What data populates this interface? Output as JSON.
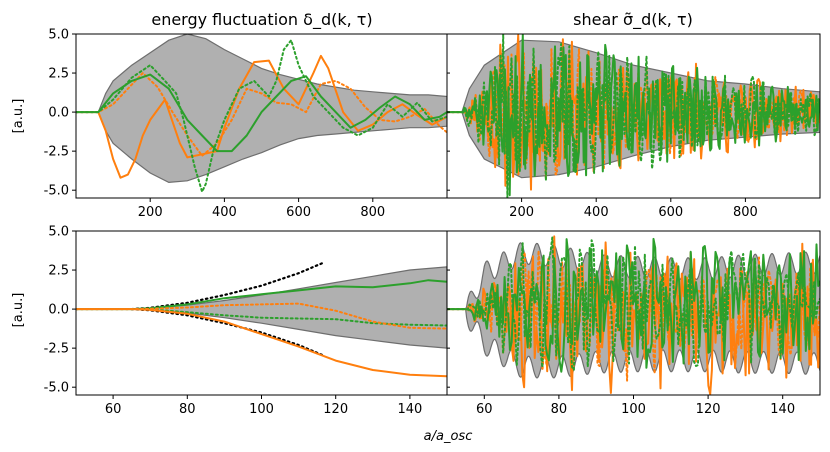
{
  "figure": {
    "xlabel": "a/a_osc",
    "colors": {
      "orange": "#ff7f0e",
      "green": "#2ca02c",
      "band_fill": "#b0b0b0",
      "band_edge": "#6e6e6e",
      "dotted_black": "#000000"
    }
  },
  "chart_data": [
    {
      "type": "line",
      "panel": "top-left",
      "title": "energy fluctuation δ_d(k, τ)",
      "xlabel": "",
      "ylabel": "[a.u.]",
      "xlim": [
        0,
        1000
      ],
      "ylim": [
        -5.5,
        5.0
      ],
      "xticks": [
        200,
        400,
        600,
        800
      ],
      "yticks": [
        -5.0,
        -2.5,
        0.0,
        2.5,
        5.0
      ],
      "band": {
        "x": [
          0,
          60,
          70,
          80,
          100,
          150,
          200,
          250,
          300,
          350,
          400,
          450,
          500,
          550,
          600,
          650,
          700,
          750,
          800,
          850,
          900,
          950,
          1000
        ],
        "upper": [
          0,
          0,
          0.6,
          1.2,
          2.0,
          3.0,
          3.8,
          4.6,
          5.0,
          4.7,
          4.0,
          3.4,
          2.8,
          2.4,
          2.1,
          1.8,
          1.6,
          1.4,
          1.3,
          1.2,
          1.1,
          1.1,
          1.0
        ],
        "lower": [
          0,
          0,
          -0.6,
          -1.2,
          -2.0,
          -3.0,
          -3.9,
          -4.5,
          -4.4,
          -4.0,
          -3.5,
          -3.0,
          -2.6,
          -2.1,
          -1.7,
          -1.5,
          -1.4,
          -1.3,
          -1.2,
          -1.1,
          -1.0,
          -1.0,
          -0.9
        ]
      },
      "series": [
        {
          "color": "orange",
          "style": "solid",
          "x": [
            0,
            60,
            80,
            100,
            120,
            140,
            160,
            180,
            200,
            240,
            280,
            300,
            340,
            380,
            400,
            440,
            480,
            520,
            560,
            600,
            640,
            660,
            680,
            720,
            760,
            800,
            840,
            880,
            920,
            960,
            1000
          ],
          "y": [
            0,
            0,
            -1.2,
            -3.0,
            -4.2,
            -4.0,
            -3.0,
            -1.5,
            -0.5,
            0.8,
            -2.0,
            -2.9,
            -2.7,
            -2.5,
            -1.0,
            1.5,
            3.2,
            3.3,
            1.5,
            0.5,
            2.5,
            3.6,
            2.8,
            0.0,
            -1.2,
            -0.8,
            0.0,
            0.5,
            -0.2,
            -0.8,
            -0.3
          ]
        },
        {
          "color": "orange",
          "style": "dotted",
          "x": [
            0,
            60,
            100,
            140,
            180,
            220,
            260,
            300,
            340,
            380,
            420,
            460,
            500,
            540,
            580,
            620,
            660,
            700,
            740,
            780,
            820,
            860,
            900,
            940,
            980,
            1000
          ],
          "y": [
            0,
            0,
            0.5,
            1.5,
            2.5,
            1.6,
            0.0,
            -1.5,
            -2.8,
            -2.0,
            -0.5,
            1.5,
            1.2,
            0.6,
            0.5,
            0.0,
            1.8,
            2.0,
            1.5,
            0.3,
            -0.5,
            -0.6,
            -0.3,
            0.2,
            -0.9,
            -1.3
          ]
        },
        {
          "color": "green",
          "style": "solid",
          "x": [
            0,
            60,
            80,
            100,
            150,
            200,
            250,
            300,
            340,
            380,
            420,
            460,
            500,
            540,
            580,
            620,
            660,
            700,
            740,
            780,
            820,
            860,
            900,
            940,
            980,
            1000
          ],
          "y": [
            0,
            0,
            0.6,
            1.2,
            2.0,
            2.4,
            1.5,
            -0.5,
            -1.5,
            -2.5,
            -2.5,
            -1.5,
            0.0,
            1.0,
            2.0,
            2.3,
            1.0,
            0.0,
            -1.0,
            -0.5,
            0.3,
            1.0,
            0.5,
            -0.5,
            -0.3,
            0.0
          ]
        },
        {
          "color": "green",
          "style": "dotted",
          "x": [
            0,
            60,
            100,
            150,
            200,
            240,
            270,
            290,
            320,
            340,
            350,
            370,
            400,
            440,
            480,
            520,
            540,
            560,
            580,
            600,
            640,
            680,
            720,
            760,
            800,
            840,
            880,
            920,
            960,
            1000
          ],
          "y": [
            0,
            0,
            0.8,
            2.2,
            3.0,
            2.0,
            1.2,
            -0.5,
            -3.5,
            -5.1,
            -4.6,
            -2.5,
            -0.5,
            1.5,
            2.0,
            1.0,
            2.0,
            4.0,
            4.6,
            3.0,
            1.0,
            0.0,
            -1.0,
            -1.5,
            -1.0,
            0.5,
            -0.3,
            0.6,
            -0.6,
            -0.3
          ]
        }
      ]
    },
    {
      "type": "line",
      "panel": "top-right",
      "title": "shear σ̃_d(k, τ)",
      "xlabel": "",
      "ylabel": "",
      "xlim": [
        0,
        1000
      ],
      "ylim": [
        -5.5,
        5.0
      ],
      "xticks": [
        200,
        400,
        600,
        800
      ],
      "band": {
        "x": [
          0,
          40,
          60,
          100,
          200,
          300,
          400,
          500,
          600,
          700,
          800,
          900,
          1000
        ],
        "upper": [
          0,
          0,
          1.5,
          3.0,
          4.6,
          4.5,
          3.8,
          3.0,
          2.5,
          2.0,
          1.8,
          1.5,
          1.3
        ],
        "lower": [
          0,
          0,
          -1.5,
          -3.0,
          -4.2,
          -4.0,
          -3.5,
          -2.8,
          -2.2,
          -1.8,
          -1.6,
          -1.4,
          -1.3
        ]
      },
      "series": [
        {
          "color": "orange",
          "style": "solid",
          "noise": {
            "x0": 40,
            "x1": 1000,
            "n": 280,
            "amp_start": 5.0,
            "amp_end": 1.2,
            "seed": 11,
            "delay": 1
          }
        },
        {
          "color": "orange",
          "style": "dotted",
          "noise": {
            "x0": 40,
            "x1": 1000,
            "n": 260,
            "amp_start": 4.5,
            "amp_end": 1.0,
            "seed": 23,
            "delay": 1
          }
        },
        {
          "color": "green",
          "style": "dotted",
          "noise": {
            "x0": 40,
            "x1": 1000,
            "n": 260,
            "amp_start": 5.0,
            "amp_end": 1.2,
            "seed": 37,
            "delay": 1
          }
        },
        {
          "color": "green",
          "style": "solid",
          "noise": {
            "x0": 40,
            "x1": 1000,
            "n": 300,
            "amp_start": 5.0,
            "amp_end": 1.3,
            "seed": 51,
            "delay": 1
          }
        }
      ]
    },
    {
      "type": "line",
      "panel": "bottom-left",
      "title": "",
      "xlabel": "",
      "ylabel": "[a.u.]",
      "xlim": [
        50,
        150
      ],
      "ylim": [
        -5.5,
        5.0
      ],
      "xticks": [
        60,
        80,
        100,
        120,
        140
      ],
      "yticks": [
        -5.0,
        -2.5,
        0.0,
        2.5,
        5.0
      ],
      "band": {
        "x": [
          50,
          65,
          70,
          80,
          90,
          100,
          110,
          120,
          130,
          140,
          150
        ],
        "upper": [
          0,
          0,
          0.05,
          0.25,
          0.55,
          0.9,
          1.3,
          1.7,
          2.1,
          2.5,
          2.7
        ],
        "lower": [
          0,
          0,
          -0.05,
          -0.25,
          -0.55,
          -0.9,
          -1.3,
          -1.7,
          -2.0,
          -2.3,
          -2.5
        ]
      },
      "series": [
        {
          "color": "black",
          "style": "dotted",
          "x": [
            65,
            70,
            80,
            90,
            100,
            110,
            117
          ],
          "y": [
            0,
            0.08,
            0.4,
            0.9,
            1.5,
            2.3,
            3.0
          ]
        },
        {
          "color": "black",
          "style": "dotted",
          "x": [
            65,
            70,
            80,
            90,
            100,
            110,
            117
          ],
          "y": [
            0,
            -0.08,
            -0.4,
            -0.9,
            -1.5,
            -2.3,
            -3.0
          ]
        },
        {
          "color": "green",
          "style": "solid",
          "x": [
            50,
            65,
            70,
            80,
            90,
            100,
            110,
            120,
            130,
            140,
            145,
            150
          ],
          "y": [
            0,
            0,
            0.05,
            0.3,
            0.7,
            0.95,
            1.2,
            1.45,
            1.4,
            1.65,
            1.85,
            1.75
          ]
        },
        {
          "color": "green",
          "style": "dotted",
          "x": [
            50,
            65,
            70,
            80,
            90,
            100,
            110,
            120,
            130,
            140,
            150
          ],
          "y": [
            0,
            0,
            -0.02,
            -0.2,
            -0.4,
            -0.55,
            -0.6,
            -0.65,
            -0.9,
            -1.0,
            -1.05
          ]
        },
        {
          "color": "orange",
          "style": "dotted",
          "x": [
            50,
            65,
            70,
            80,
            90,
            100,
            110,
            120,
            130,
            140,
            150
          ],
          "y": [
            0,
            0,
            0.02,
            0.1,
            0.25,
            0.3,
            0.35,
            -0.1,
            -0.8,
            -1.2,
            -1.25
          ]
        },
        {
          "color": "orange",
          "style": "solid",
          "x": [
            50,
            65,
            70,
            80,
            90,
            100,
            110,
            120,
            130,
            140,
            150
          ],
          "y": [
            0,
            0,
            -0.05,
            -0.3,
            -0.8,
            -1.6,
            -2.4,
            -3.3,
            -3.9,
            -4.2,
            -4.3
          ]
        }
      ]
    },
    {
      "type": "line",
      "panel": "bottom-right",
      "title": "",
      "xlabel": "",
      "ylabel": "",
      "xlim": [
        50,
        150
      ],
      "ylim": [
        -5.5,
        5.0
      ],
      "xticks": [
        60,
        80,
        100,
        120,
        140
      ],
      "band": {
        "x": [
          50,
          55,
          60,
          70,
          80,
          90,
          100,
          110,
          120,
          130,
          140,
          150
        ],
        "upper": [
          0,
          0,
          2.5,
          3.8,
          3.6,
          3.0,
          2.9,
          2.8,
          2.8,
          3.0,
          3.1,
          3.2
        ],
        "lower": [
          0,
          0,
          -2.0,
          -3.5,
          -3.5,
          -3.2,
          -3.1,
          -3.1,
          -3.1,
          -3.2,
          -3.2,
          -3.3
        ],
        "wiggle": {
          "x0": 55,
          "period": 4.5,
          "amp": 1.4
        }
      },
      "series": [
        {
          "color": "orange",
          "style": "solid",
          "noise": {
            "x0": 55,
            "x1": 150,
            "n": 200,
            "amp_start": 4.5,
            "amp_end": 3.8,
            "seed": 7,
            "delay": 0,
            "bias": -1.0
          }
        },
        {
          "color": "orange",
          "style": "dotted",
          "noise": {
            "x0": 55,
            "x1": 150,
            "n": 180,
            "amp_start": 4.0,
            "amp_end": 3.0,
            "seed": 19,
            "delay": 0,
            "bias": -0.3
          }
        },
        {
          "color": "green",
          "style": "dotted",
          "noise": {
            "x0": 55,
            "x1": 150,
            "n": 180,
            "amp_start": 4.0,
            "amp_end": 3.2,
            "seed": 29,
            "delay": 0,
            "bias": 0.4
          }
        },
        {
          "color": "green",
          "style": "solid",
          "noise": {
            "x0": 55,
            "x1": 150,
            "n": 200,
            "amp_start": 4.0,
            "amp_end": 3.5,
            "seed": 43,
            "delay": 0,
            "bias": 0.8
          }
        }
      ]
    }
  ]
}
